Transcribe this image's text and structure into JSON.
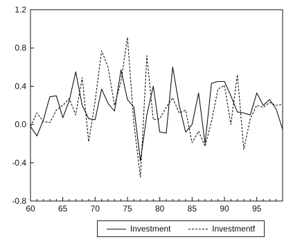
{
  "chart_data": {
    "type": "line",
    "x": [
      1960,
      1961,
      1962,
      1963,
      1964,
      1965,
      1966,
      1967,
      1968,
      1969,
      1970,
      1971,
      1972,
      1973,
      1974,
      1975,
      1976,
      1977,
      1978,
      1979,
      1980,
      1981,
      1982,
      1983,
      1984,
      1985,
      1986,
      1987,
      1988,
      1989,
      1990,
      1991,
      1992,
      1993,
      1994,
      1995,
      1996,
      1997,
      1998,
      1999
    ],
    "series": [
      {
        "name": "Investment",
        "style": "solid",
        "color": "#111111",
        "values": [
          -0.02,
          -0.12,
          0.05,
          0.29,
          0.3,
          0.07,
          0.25,
          0.55,
          0.2,
          0.06,
          0.05,
          0.37,
          0.22,
          0.14,
          0.57,
          0.26,
          0.18,
          -0.38,
          0.1,
          0.4,
          -0.08,
          -0.09,
          0.6,
          0.2,
          -0.08,
          0.0,
          0.33,
          -0.2,
          0.43,
          0.45,
          0.45,
          0.3,
          0.13,
          0.12,
          0.1,
          0.33,
          0.2,
          0.26,
          0.16,
          -0.05
        ]
      },
      {
        "name": "Investmentf",
        "style": "dashed",
        "color": "#111111",
        "values": [
          -0.02,
          0.12,
          0.03,
          0.02,
          0.15,
          0.2,
          0.27,
          0.1,
          0.49,
          -0.18,
          0.24,
          0.77,
          0.6,
          0.2,
          0.45,
          0.91,
          0.01,
          -0.55,
          0.72,
          0.05,
          0.06,
          0.18,
          0.28,
          0.12,
          0.15,
          -0.19,
          -0.07,
          -0.23,
          0.03,
          0.37,
          0.41,
          0.0,
          0.52,
          -0.26,
          0.06,
          0.2,
          0.18,
          0.23,
          0.2,
          0.21
        ]
      }
    ],
    "xlim": [
      1960,
      1999
    ],
    "ylim": [
      -0.8,
      1.2
    ],
    "yticks": [
      -0.8,
      -0.4,
      0.0,
      0.4,
      0.8,
      1.2
    ],
    "yticklabels": [
      "-0.8",
      "-0.4",
      "0.0",
      "0.4",
      "0.8",
      "1.2"
    ],
    "xticks": [
      1960,
      1965,
      1970,
      1975,
      1980,
      1985,
      1990,
      1995
    ],
    "xticklabels": [
      "60",
      "65",
      "70",
      "75",
      "80",
      "85",
      "90",
      "95"
    ],
    "grid": false,
    "legend": "bottom-right",
    "title": "",
    "xlabel": "",
    "ylabel": ""
  }
}
